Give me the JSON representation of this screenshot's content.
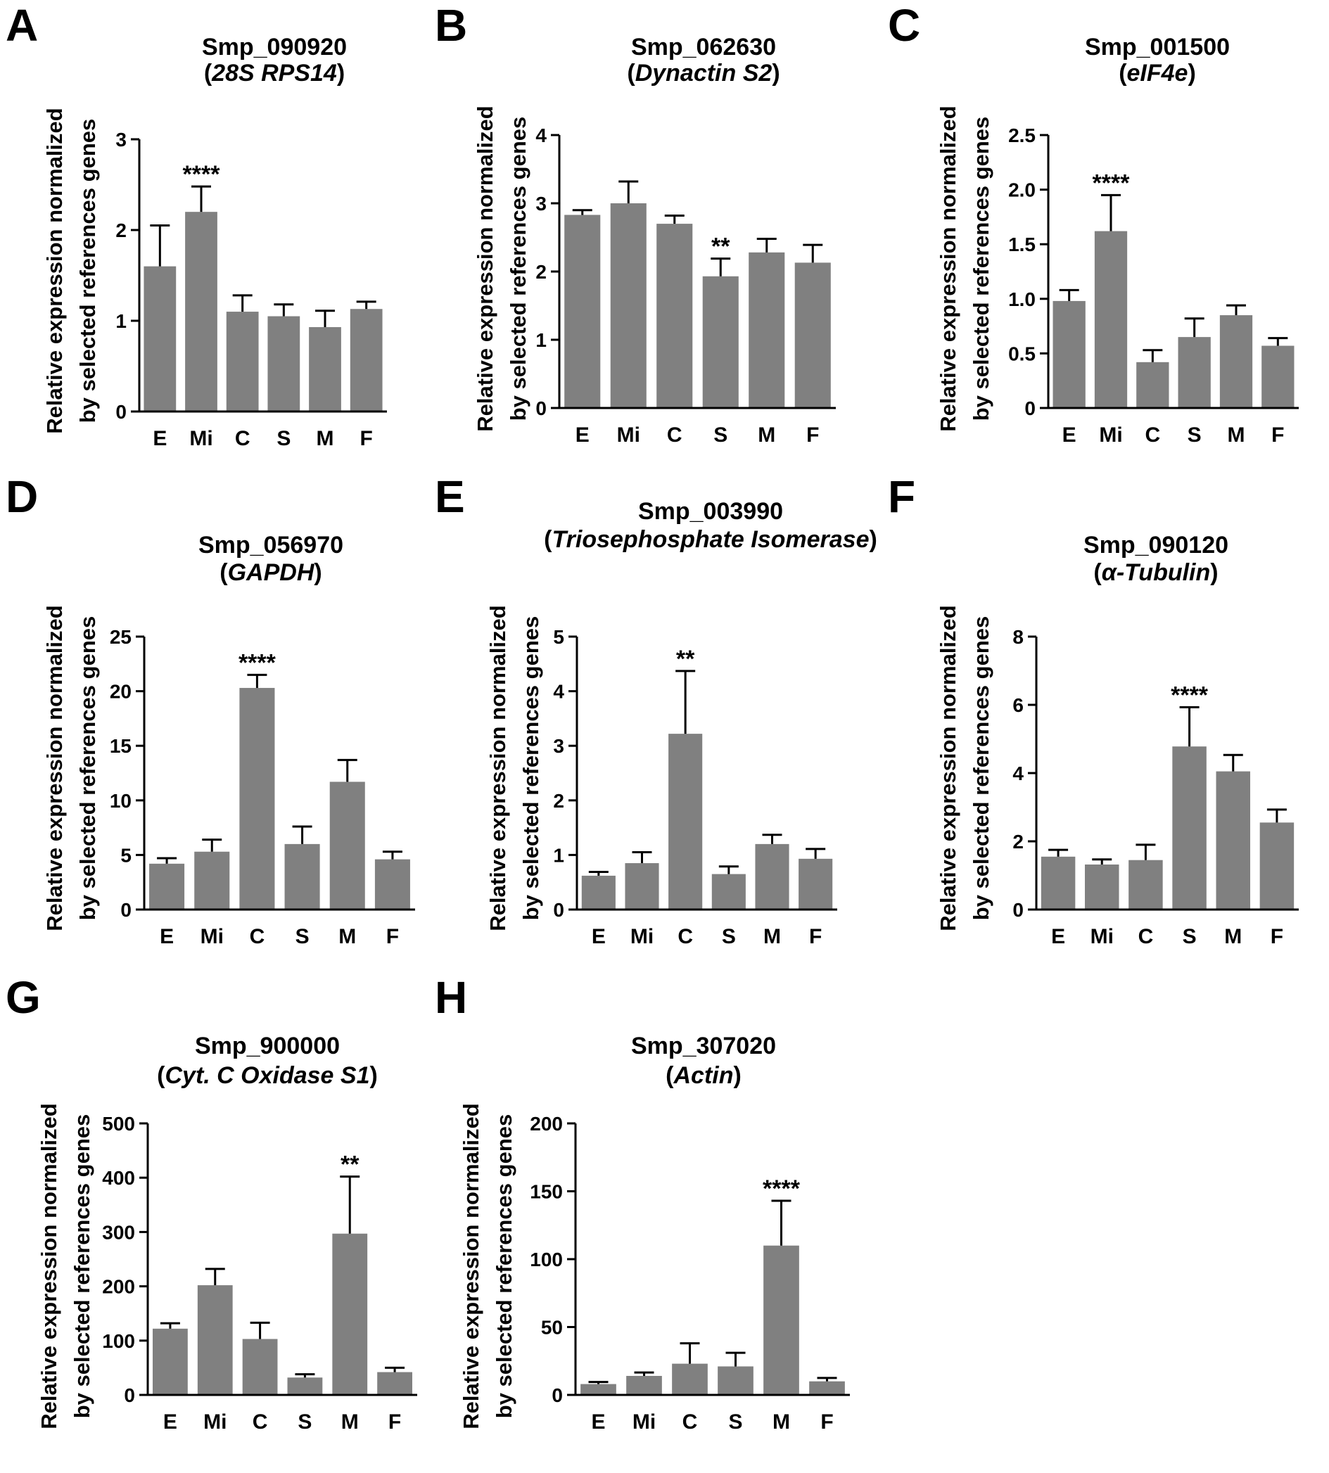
{
  "figure": {
    "ylabel_line1": "Relative expression normalized",
    "ylabel_line2": "by selected references genes"
  },
  "chart_data": [
    {
      "panel": "A",
      "type": "bar",
      "title": "Smp_090920",
      "subtitle": "28S  RPS14",
      "categories": [
        "E",
        "Mi",
        "C",
        "S",
        "M",
        "F"
      ],
      "values": [
        1.6,
        2.2,
        1.1,
        1.05,
        0.93,
        1.13
      ],
      "errors": [
        0.45,
        0.28,
        0.18,
        0.13,
        0.18,
        0.08
      ],
      "significance": [
        {
          "category": "Mi",
          "label": "****"
        }
      ],
      "ylim": [
        0,
        3
      ],
      "yticks": [
        "0",
        "1",
        "2",
        "3"
      ],
      "ytick_values": [
        0,
        1,
        2,
        3
      ]
    },
    {
      "panel": "B",
      "type": "bar",
      "title": "Smp_062630",
      "subtitle": "Dynactin S2",
      "categories": [
        "E",
        "Mi",
        "C",
        "S",
        "M",
        "F"
      ],
      "values": [
        2.83,
        3.0,
        2.7,
        1.93,
        2.28,
        2.13
      ],
      "errors": [
        0.07,
        0.32,
        0.12,
        0.26,
        0.2,
        0.26
      ],
      "significance": [
        {
          "category": "S",
          "label": "**"
        }
      ],
      "ylim": [
        0,
        4
      ],
      "yticks": [
        "0",
        "1",
        "2",
        "3",
        "4"
      ],
      "ytick_values": [
        0,
        1,
        2,
        3,
        4
      ]
    },
    {
      "panel": "C",
      "type": "bar",
      "title": "Smp_001500",
      "subtitle": "eIF4e",
      "categories": [
        "E",
        "Mi",
        "C",
        "S",
        "M",
        "F"
      ],
      "values": [
        0.98,
        1.62,
        0.42,
        0.65,
        0.85,
        0.57
      ],
      "errors": [
        0.1,
        0.33,
        0.11,
        0.17,
        0.09,
        0.07
      ],
      "significance": [
        {
          "category": "Mi",
          "label": "****"
        }
      ],
      "ylim": [
        0,
        2.5
      ],
      "yticks": [
        "0",
        "0.5",
        "1.0",
        "1.5",
        "2.0",
        "2.5"
      ],
      "ytick_values": [
        0,
        0.5,
        1.0,
        1.5,
        2.0,
        2.5
      ]
    },
    {
      "panel": "D",
      "type": "bar",
      "title": "Smp_056970",
      "subtitle": "GAPDH",
      "categories": [
        "E",
        "Mi",
        "C",
        "S",
        "M",
        "F"
      ],
      "values": [
        4.2,
        5.3,
        20.3,
        6.0,
        11.7,
        4.6
      ],
      "errors": [
        0.5,
        1.1,
        1.2,
        1.6,
        2.0,
        0.7
      ],
      "significance": [
        {
          "category": "C",
          "label": "****"
        }
      ],
      "ylim": [
        0,
        25
      ],
      "yticks": [
        "0",
        "5",
        "10",
        "15",
        "20",
        "25"
      ],
      "ytick_values": [
        0,
        5,
        10,
        15,
        20,
        25
      ]
    },
    {
      "panel": "E",
      "type": "bar",
      "title": "Smp_003990",
      "subtitle": "Triosephosphate Isomerase",
      "categories": [
        "E",
        "Mi",
        "C",
        "S",
        "M",
        "F"
      ],
      "values": [
        0.62,
        0.85,
        3.22,
        0.65,
        1.2,
        0.93
      ],
      "errors": [
        0.07,
        0.2,
        1.15,
        0.14,
        0.17,
        0.18
      ],
      "significance": [
        {
          "category": "C",
          "label": "**"
        }
      ],
      "ylim": [
        0,
        5
      ],
      "yticks": [
        "0",
        "1",
        "2",
        "3",
        "4",
        "5"
      ],
      "ytick_values": [
        0,
        1,
        2,
        3,
        4,
        5
      ]
    },
    {
      "panel": "F",
      "type": "bar",
      "title": "Smp_090120",
      "subtitle": "α-Tubulin",
      "categories": [
        "E",
        "Mi",
        "C",
        "S",
        "M",
        "F"
      ],
      "values": [
        1.55,
        1.32,
        1.45,
        4.78,
        4.05,
        2.55
      ],
      "errors": [
        0.2,
        0.15,
        0.45,
        1.15,
        0.48,
        0.38
      ],
      "significance": [
        {
          "category": "S",
          "label": "****"
        }
      ],
      "ylim": [
        0,
        8
      ],
      "yticks": [
        "0",
        "2",
        "4",
        "6",
        "8"
      ],
      "ytick_values": [
        0,
        2,
        4,
        6,
        8
      ]
    },
    {
      "panel": "G",
      "type": "bar",
      "title": "Smp_900000",
      "subtitle": "Cyt. C Oxidase S1",
      "categories": [
        "E",
        "Mi",
        "C",
        "S",
        "M",
        "F"
      ],
      "values": [
        122,
        202,
        103,
        32,
        297,
        42
      ],
      "errors": [
        10,
        30,
        30,
        6,
        105,
        8
      ],
      "significance": [
        {
          "category": "M",
          "label": "**"
        }
      ],
      "ylim": [
        0,
        500
      ],
      "yticks": [
        "0",
        "100",
        "200",
        "300",
        "400",
        "500"
      ],
      "ytick_values": [
        0,
        100,
        200,
        300,
        400,
        500
      ]
    },
    {
      "panel": "H",
      "type": "bar",
      "title": "Smp_307020",
      "subtitle": "Actin",
      "categories": [
        "E",
        "Mi",
        "C",
        "S",
        "M",
        "F"
      ],
      "values": [
        8,
        14,
        23,
        21,
        110,
        10
      ],
      "errors": [
        1.5,
        2.5,
        15,
        10,
        33,
        2.5
      ],
      "significance": [
        {
          "category": "M",
          "label": "****"
        }
      ],
      "ylim": [
        0,
        200
      ],
      "yticks": [
        "0",
        "50",
        "100",
        "150",
        "200"
      ],
      "ytick_values": [
        0,
        50,
        100,
        150,
        200
      ]
    }
  ]
}
